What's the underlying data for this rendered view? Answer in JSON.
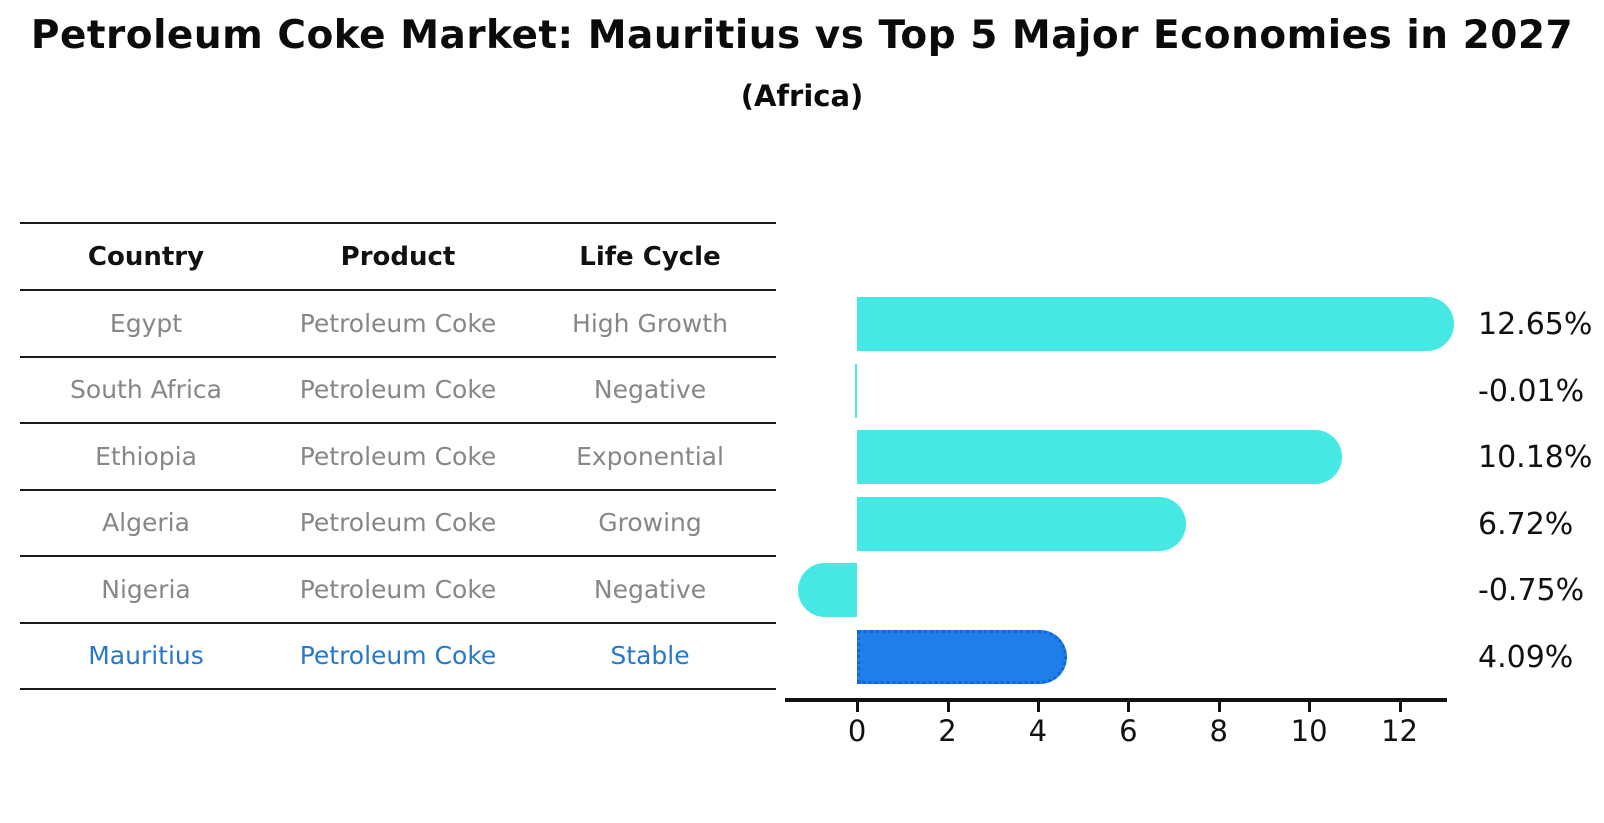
{
  "header": {
    "title": "Petroleum Coke Market: Mauritius vs Top 5 Major Economies in 2027",
    "subtitle": "(Africa)"
  },
  "table": {
    "columns": [
      "Country",
      "Product",
      "Life Cycle"
    ],
    "rows": [
      {
        "country": "Egypt",
        "product": "Petroleum Coke",
        "life_cycle": "High Growth",
        "highlight": false
      },
      {
        "country": "South Africa",
        "product": "Petroleum Coke",
        "life_cycle": "Negative",
        "highlight": false
      },
      {
        "country": "Ethiopia",
        "product": "Petroleum Coke",
        "life_cycle": "Exponential",
        "highlight": false
      },
      {
        "country": "Algeria",
        "product": "Petroleum Coke",
        "life_cycle": "Growing",
        "highlight": false
      },
      {
        "country": "Nigeria",
        "product": "Petroleum Coke",
        "life_cycle": "Negative",
        "highlight": false
      },
      {
        "country": "Mauritius",
        "product": "Petroleum Coke",
        "life_cycle": "Stable",
        "highlight": true
      }
    ]
  },
  "chart_data": {
    "type": "bar",
    "orientation": "horizontal",
    "title": "Petroleum Coke Market: Mauritius vs Top 5 Major Economies in 2027 (Africa)",
    "categories": [
      "Egypt",
      "South Africa",
      "Ethiopia",
      "Algeria",
      "Nigeria",
      "Mauritius"
    ],
    "values": [
      12.65,
      -0.01,
      10.18,
      6.72,
      -0.75,
      4.09
    ],
    "labels": [
      "12.65%",
      "-0.01%",
      "10.18%",
      "6.72%",
      "-0.75%",
      "4.09%"
    ],
    "unit": "percent CAGR",
    "xticks": [
      "0",
      "2",
      "4",
      "6",
      "8",
      "10",
      "12"
    ],
    "xtick_values": [
      0,
      2,
      4,
      6,
      8,
      10,
      12
    ],
    "xlim": [
      -1.75,
      13.05
    ],
    "grid": false,
    "legend": false,
    "highlight_index": 5,
    "colors": {
      "bar": "#46E8E4",
      "highlight_bar": "#1E7FE8",
      "highlight_bar_border": "#1166D4",
      "highlight_text": "#2878C8",
      "table_text": "#878787",
      "text": "#111111"
    }
  }
}
